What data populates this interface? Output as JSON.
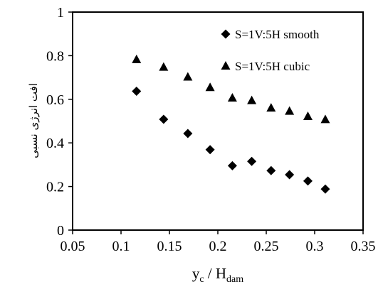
{
  "chart_data": {
    "type": "scatter",
    "xlabel": "y",
    "xlabel_subscript": "c",
    "xlabel_mid": " / H",
    "xlabel_subscript2": "dam",
    "ylabel": "افت انرژی نسبی",
    "xlim": [
      0.05,
      0.35
    ],
    "ylim": [
      0,
      1
    ],
    "x_ticks": [
      "0.05",
      "0.1",
      "0.15",
      "0.2",
      "0.25",
      "0.3",
      "0.35"
    ],
    "y_ticks": [
      "0",
      "0.2",
      "0.4",
      "0.6",
      "0.8",
      "1"
    ],
    "grid": false,
    "legend_position": "top-right",
    "series": [
      {
        "name": "S=1V:5H smooth",
        "marker": "diamond",
        "color": "#000000",
        "x": [
          0.116,
          0.144,
          0.169,
          0.192,
          0.215,
          0.235,
          0.255,
          0.274,
          0.293,
          0.311
        ],
        "y": [
          0.637,
          0.508,
          0.443,
          0.369,
          0.295,
          0.315,
          0.273,
          0.254,
          0.225,
          0.188
        ]
      },
      {
        "name": "S=1V:5H cubic",
        "marker": "triangle",
        "color": "#000000",
        "x": [
          0.116,
          0.144,
          0.169,
          0.192,
          0.215,
          0.235,
          0.255,
          0.274,
          0.293,
          0.311
        ],
        "y": [
          0.782,
          0.747,
          0.702,
          0.654,
          0.606,
          0.594,
          0.56,
          0.545,
          0.521,
          0.507
        ]
      }
    ]
  }
}
